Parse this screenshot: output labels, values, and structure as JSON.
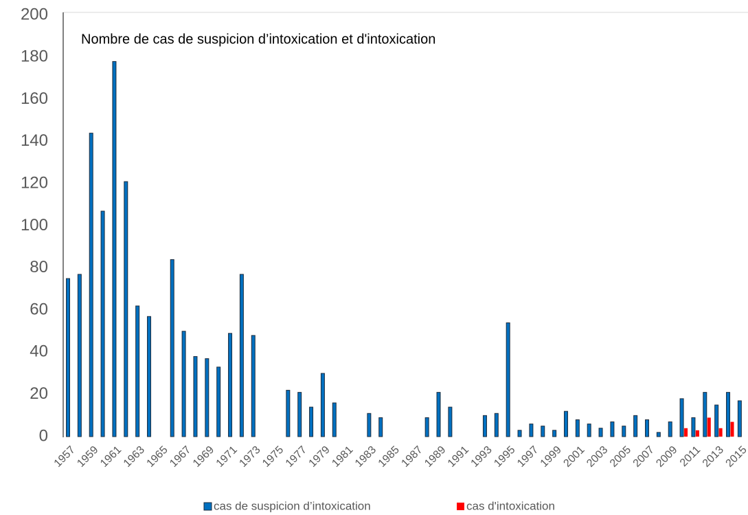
{
  "chart_data": {
    "type": "bar",
    "title": "Nombre de cas de suspicion d’intoxication et d'intoxication",
    "categories": [
      "1957",
      null,
      "1959",
      null,
      "1961",
      null,
      "1963",
      null,
      "1965",
      null,
      "1967",
      null,
      "1969",
      null,
      "1971",
      null,
      "1973",
      null,
      "1975",
      null,
      "1977",
      null,
      "1979",
      null,
      "1981",
      null,
      "1983",
      null,
      "1985",
      null,
      "1987",
      null,
      "1989",
      null,
      "1991",
      null,
      "1993",
      null,
      "1995",
      null,
      "1997",
      null,
      "1999",
      null,
      "2001",
      null,
      "2003",
      null,
      "2005",
      null,
      "2007",
      null,
      "2009",
      null,
      "2011",
      null,
      "2013",
      null,
      "2015"
    ],
    "series": [
      {
        "name": "cas de suspicion d’intoxication",
        "color": "#0070c0",
        "values": [
          75,
          77,
          144,
          107,
          178,
          121,
          62,
          57,
          0,
          84,
          50,
          38,
          37,
          33,
          49,
          77,
          48,
          0,
          0,
          22,
          21,
          14,
          30,
          16,
          0,
          0,
          11,
          9,
          0,
          0,
          0,
          9,
          21,
          14,
          0,
          0,
          10,
          11,
          54,
          3,
          6,
          5,
          3,
          12,
          8,
          6,
          4,
          7,
          5,
          10,
          8,
          2,
          7,
          18,
          9,
          21,
          15,
          21,
          17
        ]
      },
      {
        "name": "cas d'intoxication",
        "color": "#ff0000",
        "values": [
          0,
          0,
          0,
          0,
          0,
          0,
          0,
          0,
          0,
          0,
          0,
          0,
          0,
          0,
          0,
          0,
          0,
          0,
          0,
          0,
          0,
          0,
          0,
          0,
          0,
          0,
          0,
          0,
          0,
          0,
          0,
          0,
          0,
          0,
          0,
          0,
          0,
          0,
          0,
          0,
          0,
          0,
          0,
          0,
          0,
          0,
          0,
          0,
          0,
          0,
          0,
          0,
          0,
          4,
          3,
          9,
          4,
          7,
          0
        ]
      }
    ],
    "ylim": [
      0,
      200
    ],
    "yticks": [
      0,
      20,
      40,
      60,
      80,
      100,
      120,
      140,
      160,
      180,
      200
    ],
    "grid": false
  }
}
